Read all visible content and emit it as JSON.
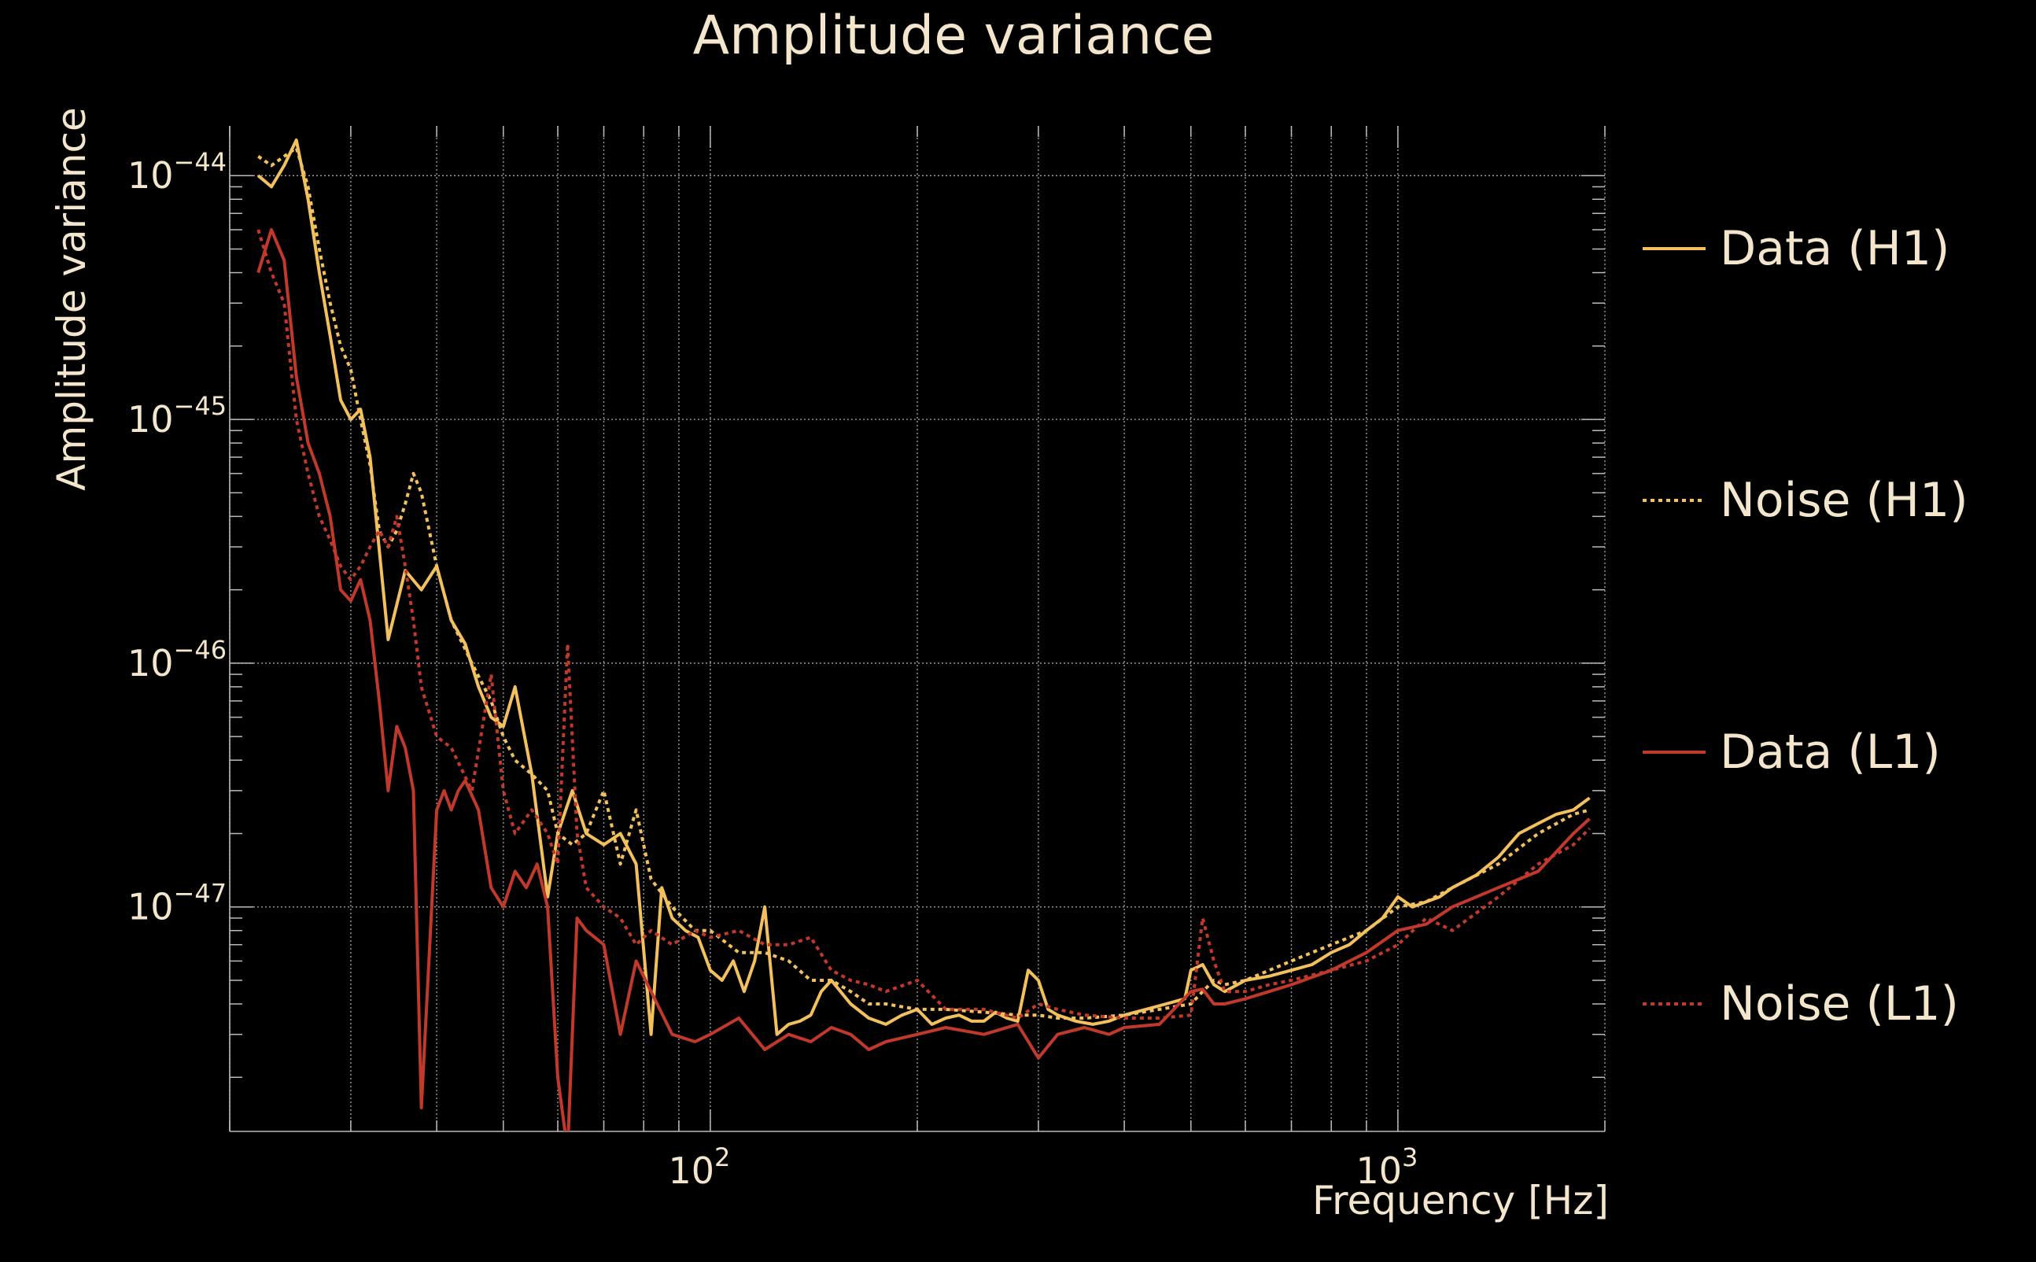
{
  "chart_data": {
    "type": "line",
    "title": "Amplitude variance",
    "xlabel": "Frequency [Hz]",
    "ylabel": "Amplitude variance",
    "x_scale": "log",
    "y_scale": "log",
    "xlim": [
      20,
      2000
    ],
    "ylim": [
      1.2e-48,
      1.6e-44
    ],
    "x_ticks": [
      {
        "value": 100,
        "base": "10",
        "exp": "2"
      },
      {
        "value": 1000,
        "base": "10",
        "exp": "3"
      }
    ],
    "y_ticks": [
      {
        "value": 1e-44,
        "base": "10",
        "exp": "−44"
      },
      {
        "value": 1e-45,
        "base": "10",
        "exp": "−45"
      },
      {
        "value": 1e-46,
        "base": "10",
        "exp": "−46"
      },
      {
        "value": 1e-47,
        "base": "10",
        "exp": "−47"
      }
    ],
    "grid": true,
    "legend_position": "right",
    "series": [
      {
        "name": "Data (H1)",
        "color": "#f2c05c",
        "style": "solid",
        "x": [
          22,
          23,
          24,
          25,
          26,
          27,
          28,
          29,
          30,
          31,
          32,
          34,
          36,
          38,
          40,
          42,
          44,
          46,
          48,
          50,
          52,
          55,
          58,
          60,
          63,
          66,
          70,
          74,
          78,
          82,
          85,
          88,
          92,
          96,
          100,
          104,
          108,
          112,
          116,
          120,
          125,
          130,
          135,
          140,
          145,
          150,
          160,
          170,
          180,
          190,
          200,
          210,
          220,
          230,
          240,
          250,
          260,
          270,
          280,
          290,
          300,
          310,
          320,
          340,
          360,
          380,
          400,
          430,
          460,
          490,
          500,
          520,
          540,
          560,
          600,
          650,
          700,
          750,
          800,
          850,
          900,
          950,
          1000,
          1050,
          1100,
          1150,
          1200,
          1300,
          1400,
          1500,
          1600,
          1700,
          1800,
          1900
        ],
        "y": [
          1e-44,
          9e-45,
          1.1e-44,
          1.4e-44,
          8e-45,
          4e-45,
          2.2e-45,
          1.2e-45,
          1e-45,
          1.1e-45,
          7e-46,
          1.25e-46,
          2.4e-46,
          2e-46,
          2.5e-46,
          1.5e-46,
          1.2e-46,
          8e-47,
          6e-47,
          5.5e-47,
          8e-47,
          3.5e-47,
          1.1e-47,
          2e-47,
          3e-47,
          2e-47,
          1.8e-47,
          2e-47,
          1.5e-47,
          3e-48,
          1.2e-47,
          9e-48,
          8e-48,
          7.5e-48,
          5.5e-48,
          5e-48,
          6e-48,
          4.5e-48,
          6e-48,
          1e-47,
          3e-48,
          3.3e-48,
          3.4e-48,
          3.6e-48,
          4.5e-48,
          5e-48,
          4e-48,
          3.5e-48,
          3.3e-48,
          3.6e-48,
          3.8e-48,
          3.3e-48,
          3.5e-48,
          3.6e-48,
          3.4e-48,
          3.4e-48,
          3.7e-48,
          3.5e-48,
          3.4e-48,
          5.5e-48,
          5e-48,
          3.8e-48,
          3.6e-48,
          3.4e-48,
          3.3e-48,
          3.4e-48,
          3.6e-48,
          3.8e-48,
          4e-48,
          4.2e-48,
          5.5e-48,
          5.8e-48,
          4.8e-48,
          4.5e-48,
          5e-48,
          5.2e-48,
          5.5e-48,
          5.8e-48,
          6.5e-48,
          7e-48,
          8e-48,
          9e-48,
          1.1e-47,
          1e-47,
          1.05e-47,
          1.1e-47,
          1.2e-47,
          1.35e-47,
          1.6e-47,
          2e-47,
          2.2e-47,
          2.4e-47,
          2.5e-47,
          2.8e-47
        ]
      },
      {
        "name": "Noise (H1)",
        "color": "#f2c05c",
        "style": "dotted",
        "x": [
          22,
          23,
          24,
          25,
          26,
          27,
          28,
          29,
          30,
          31,
          32,
          33,
          34,
          35,
          36,
          37,
          38,
          40,
          42,
          45,
          48,
          50,
          52,
          55,
          58,
          60,
          63,
          66,
          70,
          74,
          78,
          82,
          88,
          95,
          100,
          110,
          120,
          130,
          140,
          150,
          160,
          170,
          180,
          200,
          220,
          250,
          280,
          300,
          320,
          350,
          400,
          450,
          500,
          520,
          540,
          560,
          600,
          650,
          700,
          800,
          900,
          1000,
          1100,
          1200,
          1400,
          1600,
          1800,
          1900
        ],
        "y": [
          1.2e-44,
          1.1e-44,
          1.2e-44,
          1.3e-44,
          9e-45,
          5e-45,
          3e-45,
          2e-45,
          1.6e-45,
          1e-45,
          6.5e-46,
          3.5e-46,
          3e-46,
          3.5e-46,
          4.5e-46,
          6e-46,
          5e-46,
          2.5e-46,
          1.5e-46,
          1e-46,
          7e-47,
          5e-47,
          4e-47,
          3.5e-47,
          3e-47,
          2e-47,
          1.8e-47,
          2e-47,
          3e-47,
          1.5e-47,
          2.5e-47,
          1.3e-47,
          1e-47,
          8e-48,
          8e-48,
          6.5e-48,
          6.5e-48,
          6e-48,
          5e-48,
          5e-48,
          4.5e-48,
          4e-48,
          4e-48,
          3.8e-48,
          3.8e-48,
          3.7e-48,
          3.6e-48,
          3.6e-48,
          3.5e-48,
          3.5e-48,
          3.6e-48,
          3.8e-48,
          4e-48,
          4.5e-48,
          5e-48,
          4.8e-48,
          5e-48,
          5.5e-48,
          6e-48,
          7e-48,
          8e-48,
          1e-47,
          1.05e-47,
          1.2e-47,
          1.5e-47,
          2e-47,
          2.4e-47,
          2.5e-47
        ]
      },
      {
        "name": "Data (L1)",
        "color": "#c0392b",
        "style": "solid",
        "x": [
          22,
          23,
          24,
          25,
          26,
          27,
          28,
          29,
          30,
          31,
          32,
          33,
          34,
          35,
          36,
          37,
          38,
          40,
          41,
          42,
          43,
          44,
          46,
          48,
          50,
          52,
          54,
          56,
          58,
          60,
          62,
          64,
          66,
          70,
          74,
          78,
          82,
          88,
          95,
          100,
          110,
          120,
          130,
          140,
          150,
          160,
          170,
          180,
          200,
          220,
          250,
          280,
          300,
          320,
          350,
          380,
          400,
          450,
          500,
          520,
          540,
          560,
          600,
          650,
          700,
          800,
          900,
          1000,
          1100,
          1200,
          1400,
          1600,
          1800,
          1900
        ],
        "y": [
          4e-45,
          6e-45,
          4.5e-45,
          1.5e-45,
          8e-46,
          6e-46,
          4e-46,
          2e-46,
          1.8e-46,
          2.2e-46,
          1.5e-46,
          7e-47,
          3e-47,
          5.5e-47,
          4.5e-47,
          3e-47,
          1.5e-48,
          2.5e-47,
          3e-47,
          2.5e-47,
          3e-47,
          3.3e-47,
          2.5e-47,
          1.2e-47,
          1e-47,
          1.4e-47,
          1.2e-47,
          1.5e-47,
          1e-47,
          2e-48,
          1e-48,
          9e-48,
          8e-48,
          7e-48,
          3e-48,
          6e-48,
          4.5e-48,
          3e-48,
          2.8e-48,
          3e-48,
          3.5e-48,
          2.6e-48,
          3e-48,
          2.8e-48,
          3.2e-48,
          3e-48,
          2.6e-48,
          2.8e-48,
          3e-48,
          3.2e-48,
          3e-48,
          3.3e-48,
          2.4e-48,
          3e-48,
          3.2e-48,
          3e-48,
          3.2e-48,
          3.3e-48,
          4.5e-48,
          4.6e-48,
          4e-48,
          4e-48,
          4.2e-48,
          4.5e-48,
          4.8e-48,
          5.5e-48,
          6.5e-48,
          8e-48,
          8.5e-48,
          1e-47,
          1.2e-47,
          1.4e-47,
          2e-47,
          2.3e-47
        ]
      },
      {
        "name": "Noise (L1)",
        "color": "#c0392b",
        "style": "dotted",
        "x": [
          22,
          23,
          24,
          25,
          26,
          27,
          28,
          29,
          30,
          31,
          32,
          33,
          34,
          35,
          36,
          37,
          38,
          40,
          42,
          45,
          48,
          50,
          52,
          55,
          58,
          60,
          62,
          64,
          66,
          70,
          74,
          78,
          82,
          88,
          95,
          100,
          110,
          120,
          130,
          140,
          150,
          160,
          170,
          180,
          200,
          220,
          250,
          280,
          300,
          320,
          350,
          400,
          450,
          500,
          520,
          540,
          560,
          600,
          650,
          700,
          800,
          900,
          1000,
          1100,
          1200,
          1400,
          1600,
          1800,
          1900
        ],
        "y": [
          6e-45,
          4e-45,
          3e-45,
          1e-45,
          6e-46,
          4e-46,
          3.2e-46,
          2.5e-46,
          2.2e-46,
          2.5e-46,
          3e-46,
          3.5e-46,
          3e-46,
          4e-46,
          2.5e-46,
          1.5e-46,
          8e-47,
          5e-47,
          4.5e-47,
          3e-47,
          9e-47,
          3e-47,
          2e-47,
          2.5e-47,
          2e-47,
          1.5e-47,
          1.2e-46,
          2e-47,
          1.2e-47,
          1e-47,
          9e-48,
          7e-48,
          8e-48,
          7e-48,
          8e-48,
          7.5e-48,
          8e-48,
          7e-48,
          7e-48,
          7.5e-48,
          5.5e-48,
          5e-48,
          4.8e-48,
          4.5e-48,
          5e-48,
          3.8e-48,
          3.8e-48,
          3.5e-48,
          4e-48,
          3.8e-48,
          3.6e-48,
          3.5e-48,
          3.5e-48,
          3.6e-48,
          9e-48,
          6e-48,
          4.5e-48,
          4.5e-48,
          4.8e-48,
          5e-48,
          5.5e-48,
          6e-48,
          7e-48,
          9e-48,
          8e-48,
          1.1e-47,
          1.5e-47,
          1.8e-47,
          2.1e-47
        ]
      }
    ]
  }
}
